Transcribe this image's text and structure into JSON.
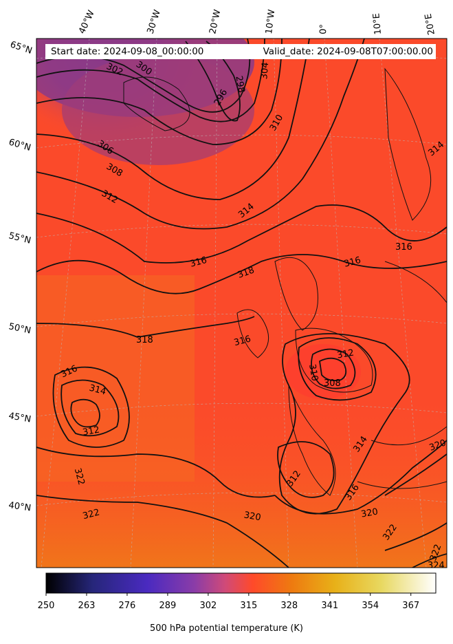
{
  "header": {
    "start_date": "Start date: 2024-09-08_00:00:00",
    "valid_date": "Valid_date: 2024-09-08T07:00:00.00"
  },
  "lon_labels": [
    "40°W",
    "30°W",
    "20°W",
    "10°W",
    "0°",
    "10°E",
    "20°E"
  ],
  "lat_labels": [
    "65°N",
    "60°N",
    "55°N",
    "50°N",
    "45°N",
    "40°N"
  ],
  "contour_labels": [
    "296",
    "298",
    "300",
    "302",
    "304",
    "306",
    "308",
    "310",
    "312",
    "314",
    "316",
    "318",
    "320",
    "322",
    "324"
  ],
  "colorbar": {
    "ticks": [
      "250",
      "263",
      "276",
      "289",
      "302",
      "315",
      "328",
      "341",
      "354",
      "367"
    ],
    "min": 250,
    "max": 375,
    "title": "500 hPa potential temperature (K)",
    "colormap": "CMRmap"
  },
  "colors": {
    "cold": "#7a3a8a",
    "warm": "#ff4a2a",
    "hot": "#f07818"
  }
}
